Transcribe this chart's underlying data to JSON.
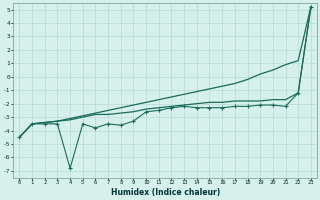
{
  "xlabel": "Humidex (Indice chaleur)",
  "bg_color": "#d6f0eb",
  "grid_color": "#b8ddd5",
  "line_color": "#1a6b5a",
  "xlim": [
    -0.5,
    23.5
  ],
  "ylim": [
    -7.5,
    5.5
  ],
  "yticks": [
    -7,
    -6,
    -5,
    -4,
    -3,
    -2,
    -1,
    0,
    1,
    2,
    3,
    4,
    5
  ],
  "xticks": [
    0,
    1,
    2,
    3,
    4,
    5,
    6,
    7,
    8,
    9,
    10,
    11,
    12,
    13,
    14,
    15,
    16,
    17,
    18,
    19,
    20,
    21,
    22,
    23
  ],
  "x": [
    0,
    1,
    2,
    3,
    4,
    5,
    6,
    7,
    8,
    9,
    10,
    11,
    12,
    13,
    14,
    15,
    16,
    17,
    18,
    19,
    20,
    21,
    22,
    23
  ],
  "y_line_smooth": [
    -4.5,
    -3.5,
    -3.4,
    -3.3,
    -3.1,
    -2.9,
    -2.7,
    -2.5,
    -2.3,
    -2.1,
    -1.9,
    -1.7,
    -1.5,
    -1.3,
    -1.1,
    -0.9,
    -0.7,
    -0.5,
    -0.2,
    0.2,
    0.5,
    0.9,
    1.2,
    5.2
  ],
  "y_line_mid": [
    -4.5,
    -3.5,
    -3.4,
    -3.3,
    -3.2,
    -3.0,
    -2.8,
    -2.8,
    -2.7,
    -2.6,
    -2.4,
    -2.3,
    -2.2,
    -2.1,
    -2.0,
    -1.9,
    -1.9,
    -1.8,
    -1.8,
    -1.8,
    -1.7,
    -1.7,
    -1.2,
    5.2
  ],
  "y_markers": [
    -4.5,
    -3.5,
    -3.5,
    -3.5,
    -6.8,
    -3.5,
    -3.8,
    -3.5,
    -3.6,
    -3.3,
    -2.6,
    -2.5,
    -2.3,
    -2.2,
    -2.3,
    -2.3,
    -2.3,
    -2.2,
    -2.2,
    -2.1,
    -2.1,
    -2.2,
    -1.2,
    5.2
  ]
}
